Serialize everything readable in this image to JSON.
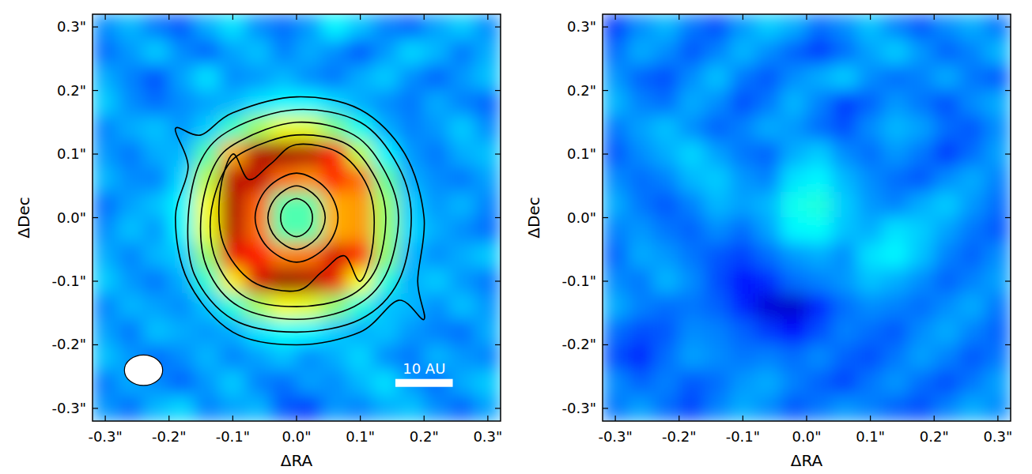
{
  "chart_data": [
    {
      "type": "heatmap",
      "x_label": "ΔRA",
      "y_label": "ΔDec",
      "xlim": [
        -0.32,
        0.32
      ],
      "ylim": [
        -0.32,
        0.32
      ],
      "xticks": [
        {
          "value": -0.3,
          "label": "-0.3\""
        },
        {
          "value": -0.2,
          "label": "-0.2\""
        },
        {
          "value": -0.1,
          "label": "-0.1\""
        },
        {
          "value": 0.0,
          "label": "0.0\""
        },
        {
          "value": 0.1,
          "label": "0.1\""
        },
        {
          "value": 0.2,
          "label": "0.2\""
        },
        {
          "value": 0.3,
          "label": "0.3\""
        }
      ],
      "yticks": [
        {
          "value": -0.3,
          "label": "-0.3\""
        },
        {
          "value": -0.2,
          "label": "-0.2\""
        },
        {
          "value": -0.1,
          "label": "-0.1\""
        },
        {
          "value": 0.0,
          "label": "0.0\""
        },
        {
          "value": 0.1,
          "label": "0.1\""
        },
        {
          "value": 0.2,
          "label": "0.2\""
        },
        {
          "value": 0.3,
          "label": "0.3\""
        }
      ],
      "color_range": [
        0.05,
        1
      ],
      "cell_x": [
        -0.3,
        -0.26,
        -0.22,
        -0.18,
        -0.14,
        -0.1,
        -0.06,
        -0.02,
        0.02,
        0.06,
        0.1,
        0.14,
        0.18,
        0.22,
        0.26,
        0.3
      ],
      "cell_y": [
        0.3,
        0.26,
        0.22,
        0.18,
        0.14,
        0.1,
        0.06,
        0.02,
        -0.02,
        -0.06,
        -0.1,
        -0.14,
        -0.18,
        -0.22,
        -0.26,
        -0.3
      ],
      "cells": [
        [
          0.3,
          0.34,
          0.28,
          0.25,
          0.33,
          0.38,
          0.3,
          0.27,
          0.31,
          0.4,
          0.35,
          0.29,
          0.26,
          0.32,
          0.36,
          0.3
        ],
        [
          0.27,
          0.31,
          0.36,
          0.3,
          0.26,
          0.32,
          0.35,
          0.29,
          0.33,
          0.3,
          0.25,
          0.31,
          0.37,
          0.34,
          0.28,
          0.33
        ],
        [
          0.33,
          0.29,
          0.24,
          0.32,
          0.38,
          0.3,
          0.31,
          0.34,
          0.3,
          0.28,
          0.33,
          0.36,
          0.3,
          0.26,
          0.31,
          0.35
        ],
        [
          0.36,
          0.3,
          0.27,
          0.3,
          0.32,
          0.34,
          0.38,
          0.4,
          0.4,
          0.37,
          0.33,
          0.3,
          0.28,
          0.33,
          0.29,
          0.26
        ],
        [
          0.29,
          0.33,
          0.35,
          0.31,
          0.36,
          0.46,
          0.56,
          0.63,
          0.62,
          0.52,
          0.42,
          0.33,
          0.29,
          0.31,
          0.36,
          0.3
        ],
        [
          0.31,
          0.28,
          0.33,
          0.34,
          0.48,
          0.72,
          0.95,
          0.97,
          0.95,
          0.86,
          0.58,
          0.4,
          0.31,
          0.28,
          0.33,
          0.35
        ],
        [
          0.34,
          0.3,
          0.29,
          0.37,
          0.58,
          0.94,
          0.94,
          0.78,
          0.75,
          0.86,
          0.78,
          0.5,
          0.33,
          0.3,
          0.28,
          0.32
        ],
        [
          0.27,
          0.32,
          0.35,
          0.4,
          0.64,
          0.96,
          0.79,
          0.48,
          0.48,
          0.72,
          0.74,
          0.55,
          0.36,
          0.31,
          0.34,
          0.29
        ],
        [
          0.3,
          0.35,
          0.31,
          0.4,
          0.63,
          0.95,
          0.78,
          0.48,
          0.48,
          0.72,
          0.74,
          0.55,
          0.37,
          0.33,
          0.3,
          0.27
        ],
        [
          0.33,
          0.29,
          0.34,
          0.36,
          0.55,
          0.9,
          0.88,
          0.76,
          0.77,
          0.92,
          0.88,
          0.54,
          0.34,
          0.3,
          0.33,
          0.36
        ],
        [
          0.36,
          0.31,
          0.28,
          0.33,
          0.45,
          0.66,
          0.92,
          0.98,
          0.96,
          0.9,
          0.64,
          0.44,
          0.33,
          0.36,
          0.31,
          0.28
        ],
        [
          0.29,
          0.34,
          0.32,
          0.3,
          0.35,
          0.44,
          0.56,
          0.64,
          0.62,
          0.54,
          0.44,
          0.35,
          0.34,
          0.3,
          0.35,
          0.31
        ],
        [
          0.32,
          0.28,
          0.35,
          0.33,
          0.31,
          0.33,
          0.38,
          0.41,
          0.4,
          0.36,
          0.33,
          0.35,
          0.31,
          0.29,
          0.27,
          0.33
        ],
        [
          0.35,
          0.31,
          0.27,
          0.3,
          0.34,
          0.29,
          0.32,
          0.35,
          0.3,
          0.33,
          0.37,
          0.3,
          0.28,
          0.34,
          0.31,
          0.29
        ],
        [
          0.28,
          0.33,
          0.3,
          0.26,
          0.31,
          0.36,
          0.29,
          0.27,
          0.32,
          0.3,
          0.34,
          0.38,
          0.31,
          0.27,
          0.33,
          0.36
        ],
        [
          0.31,
          0.27,
          0.34,
          0.37,
          0.29,
          0.32,
          0.34,
          0.25,
          0.22,
          0.31,
          0.29,
          0.33,
          0.35,
          0.3,
          0.26,
          0.32
        ]
      ],
      "contours": [
        [
          [
            -0.19,
            0.14
          ],
          [
            -0.15,
            0.13
          ],
          [
            -0.1,
            0.165
          ],
          [
            0.0,
            0.19
          ],
          [
            0.1,
            0.17
          ],
          [
            0.17,
            0.1
          ],
          [
            0.2,
            0.0
          ],
          [
            0.19,
            -0.1
          ],
          [
            0.2,
            -0.16
          ],
          [
            0.16,
            -0.13
          ],
          [
            0.1,
            -0.18
          ],
          [
            0.0,
            -0.2
          ],
          [
            -0.1,
            -0.18
          ],
          [
            -0.17,
            -0.1
          ],
          [
            -0.19,
            0.0
          ],
          [
            -0.17,
            0.08
          ]
        ],
        [
          [
            0.0,
            0.17
          ],
          [
            0.1,
            0.15
          ],
          [
            0.16,
            0.08
          ],
          [
            0.18,
            0.0
          ],
          [
            0.16,
            -0.1
          ],
          [
            0.1,
            -0.16
          ],
          [
            0.0,
            -0.18
          ],
          [
            -0.1,
            -0.16
          ],
          [
            -0.16,
            -0.09
          ],
          [
            -0.17,
            0.0
          ],
          [
            -0.15,
            0.09
          ],
          [
            -0.1,
            0.14
          ]
        ],
        [
          [
            0.0,
            0.15
          ],
          [
            0.09,
            0.13
          ],
          [
            0.14,
            0.07
          ],
          [
            0.16,
            0.0
          ],
          [
            0.14,
            -0.09
          ],
          [
            0.09,
            -0.14
          ],
          [
            0.0,
            -0.16
          ],
          [
            -0.09,
            -0.14
          ],
          [
            -0.14,
            -0.08
          ],
          [
            -0.15,
            0.0
          ],
          [
            -0.13,
            0.08
          ],
          [
            -0.09,
            0.12
          ]
        ],
        [
          [
            0.0,
            0.13
          ],
          [
            0.08,
            0.115
          ],
          [
            0.125,
            0.06
          ],
          [
            0.14,
            0.0
          ],
          [
            0.125,
            -0.08
          ],
          [
            0.08,
            -0.125
          ],
          [
            0.0,
            -0.14
          ],
          [
            -0.08,
            -0.125
          ],
          [
            -0.125,
            -0.07
          ],
          [
            -0.135,
            0.0
          ],
          [
            -0.115,
            0.07
          ],
          [
            -0.08,
            0.105
          ]
        ],
        [
          [
            0.0,
            0.115
          ],
          [
            0.07,
            0.1
          ],
          [
            0.115,
            0.04
          ],
          [
            0.12,
            -0.04
          ],
          [
            0.1,
            -0.1
          ],
          [
            0.075,
            -0.06
          ],
          [
            0.04,
            -0.085
          ],
          [
            0.0,
            -0.115
          ],
          [
            -0.07,
            -0.1
          ],
          [
            -0.115,
            -0.04
          ],
          [
            -0.12,
            0.04
          ],
          [
            -0.1,
            0.1
          ],
          [
            -0.075,
            0.06
          ],
          [
            -0.04,
            0.085
          ]
        ],
        [
          [
            0.0,
            0.07
          ],
          [
            0.046,
            0.046
          ],
          [
            0.065,
            0.0
          ],
          [
            0.046,
            -0.046
          ],
          [
            0.0,
            -0.07
          ],
          [
            -0.046,
            -0.046
          ],
          [
            -0.065,
            0.0
          ],
          [
            -0.046,
            0.046
          ]
        ],
        [
          [
            0.0,
            0.05
          ],
          [
            0.032,
            0.032
          ],
          [
            0.045,
            0.0
          ],
          [
            0.032,
            -0.032
          ],
          [
            0.0,
            -0.05
          ],
          [
            -0.032,
            -0.032
          ],
          [
            -0.045,
            0.0
          ],
          [
            -0.032,
            0.032
          ]
        ],
        [
          [
            0.0,
            0.03
          ],
          [
            0.018,
            0.02
          ],
          [
            0.025,
            0.0
          ],
          [
            0.018,
            -0.02
          ],
          [
            0.0,
            -0.03
          ],
          [
            -0.018,
            -0.02
          ],
          [
            -0.025,
            0.0
          ],
          [
            -0.018,
            0.02
          ]
        ]
      ],
      "beam": {
        "x": -0.24,
        "y": -0.24,
        "major": 0.06,
        "minor": 0.048
      },
      "scale_bar": {
        "label": "10 AU",
        "x0": 0.155,
        "x1": 0.245,
        "y": -0.26
      }
    },
    {
      "type": "heatmap",
      "x_label": "ΔRA",
      "y_label": "ΔDec",
      "xlim": [
        -0.32,
        0.32
      ],
      "ylim": [
        -0.32,
        0.32
      ],
      "xticks": [
        {
          "value": -0.3,
          "label": "-0.3\""
        },
        {
          "value": -0.2,
          "label": "-0.2\""
        },
        {
          "value": -0.1,
          "label": "-0.1\""
        },
        {
          "value": 0.0,
          "label": "0.0\""
        },
        {
          "value": 0.1,
          "label": "0.1\""
        },
        {
          "value": 0.2,
          "label": "0.2\""
        },
        {
          "value": 0.3,
          "label": "0.3\""
        }
      ],
      "yticks": [
        {
          "value": -0.3,
          "label": "-0.3\""
        },
        {
          "value": -0.2,
          "label": "-0.2\""
        },
        {
          "value": -0.1,
          "label": "-0.1\""
        },
        {
          "value": 0.0,
          "label": "0.0\""
        },
        {
          "value": 0.1,
          "label": "0.1\""
        },
        {
          "value": 0.2,
          "label": "0.2\""
        },
        {
          "value": 0.3,
          "label": "0.3\""
        }
      ],
      "color_range": [
        0.05,
        1
      ],
      "cell_x": [
        -0.3,
        -0.26,
        -0.22,
        -0.18,
        -0.14,
        -0.1,
        -0.06,
        -0.02,
        0.02,
        0.06,
        0.1,
        0.14,
        0.18,
        0.22,
        0.26,
        0.3
      ],
      "cell_y": [
        0.3,
        0.26,
        0.22,
        0.18,
        0.14,
        0.1,
        0.06,
        0.02,
        -0.02,
        -0.06,
        -0.1,
        -0.14,
        -0.18,
        -0.22,
        -0.26,
        -0.3
      ],
      "cells": [
        [
          0.22,
          0.3,
          0.34,
          0.28,
          0.24,
          0.31,
          0.36,
          0.33,
          0.27,
          0.3,
          0.35,
          0.29,
          0.25,
          0.3,
          0.33,
          0.28
        ],
        [
          0.27,
          0.33,
          0.3,
          0.25,
          0.29,
          0.34,
          0.3,
          0.26,
          0.22,
          0.27,
          0.32,
          0.36,
          0.31,
          0.26,
          0.29,
          0.34
        ],
        [
          0.31,
          0.26,
          0.24,
          0.3,
          0.35,
          0.28,
          0.25,
          0.3,
          0.33,
          0.36,
          0.3,
          0.27,
          0.29,
          0.33,
          0.28,
          0.25
        ],
        [
          0.34,
          0.29,
          0.27,
          0.33,
          0.3,
          0.24,
          0.28,
          0.34,
          0.29,
          0.22,
          0.26,
          0.31,
          0.28,
          0.24,
          0.3,
          0.33
        ],
        [
          0.28,
          0.32,
          0.35,
          0.3,
          0.26,
          0.29,
          0.33,
          0.31,
          0.27,
          0.24,
          0.3,
          0.34,
          0.32,
          0.27,
          0.25,
          0.3
        ],
        [
          0.25,
          0.3,
          0.33,
          0.37,
          0.32,
          0.28,
          0.26,
          0.33,
          0.36,
          0.3,
          0.27,
          0.31,
          0.28,
          0.22,
          0.27,
          0.32
        ],
        [
          0.3,
          0.27,
          0.29,
          0.34,
          0.36,
          0.31,
          0.29,
          0.38,
          0.4,
          0.34,
          0.3,
          0.27,
          0.25,
          0.3,
          0.33,
          0.29
        ],
        [
          0.33,
          0.28,
          0.25,
          0.29,
          0.34,
          0.32,
          0.34,
          0.42,
          0.44,
          0.36,
          0.31,
          0.29,
          0.33,
          0.36,
          0.31,
          0.27
        ],
        [
          0.29,
          0.31,
          0.28,
          0.26,
          0.3,
          0.27,
          0.32,
          0.4,
          0.41,
          0.35,
          0.33,
          0.38,
          0.36,
          0.32,
          0.28,
          0.25
        ],
        [
          0.26,
          0.33,
          0.31,
          0.28,
          0.25,
          0.23,
          0.27,
          0.31,
          0.33,
          0.3,
          0.38,
          0.4,
          0.35,
          0.29,
          0.26,
          0.3
        ],
        [
          0.3,
          0.28,
          0.34,
          0.3,
          0.24,
          0.18,
          0.21,
          0.27,
          0.29,
          0.31,
          0.35,
          0.33,
          0.3,
          0.26,
          0.29,
          0.32
        ],
        [
          0.33,
          0.29,
          0.27,
          0.28,
          0.26,
          0.2,
          0.13,
          0.12,
          0.2,
          0.27,
          0.3,
          0.29,
          0.27,
          0.3,
          0.33,
          0.28
        ],
        [
          0.27,
          0.24,
          0.25,
          0.3,
          0.29,
          0.26,
          0.22,
          0.17,
          0.24,
          0.29,
          0.27,
          0.25,
          0.3,
          0.33,
          0.29,
          0.26
        ],
        [
          0.24,
          0.2,
          0.27,
          0.32,
          0.3,
          0.28,
          0.29,
          0.27,
          0.3,
          0.26,
          0.24,
          0.28,
          0.32,
          0.29,
          0.25,
          0.28
        ],
        [
          0.3,
          0.26,
          0.29,
          0.25,
          0.27,
          0.31,
          0.33,
          0.29,
          0.26,
          0.23,
          0.28,
          0.31,
          0.27,
          0.24,
          0.28,
          0.32
        ],
        [
          0.28,
          0.32,
          0.27,
          0.23,
          0.29,
          0.33,
          0.3,
          0.25,
          0.28,
          0.31,
          0.29,
          0.26,
          0.24,
          0.29,
          0.33,
          0.3
        ]
      ]
    }
  ]
}
